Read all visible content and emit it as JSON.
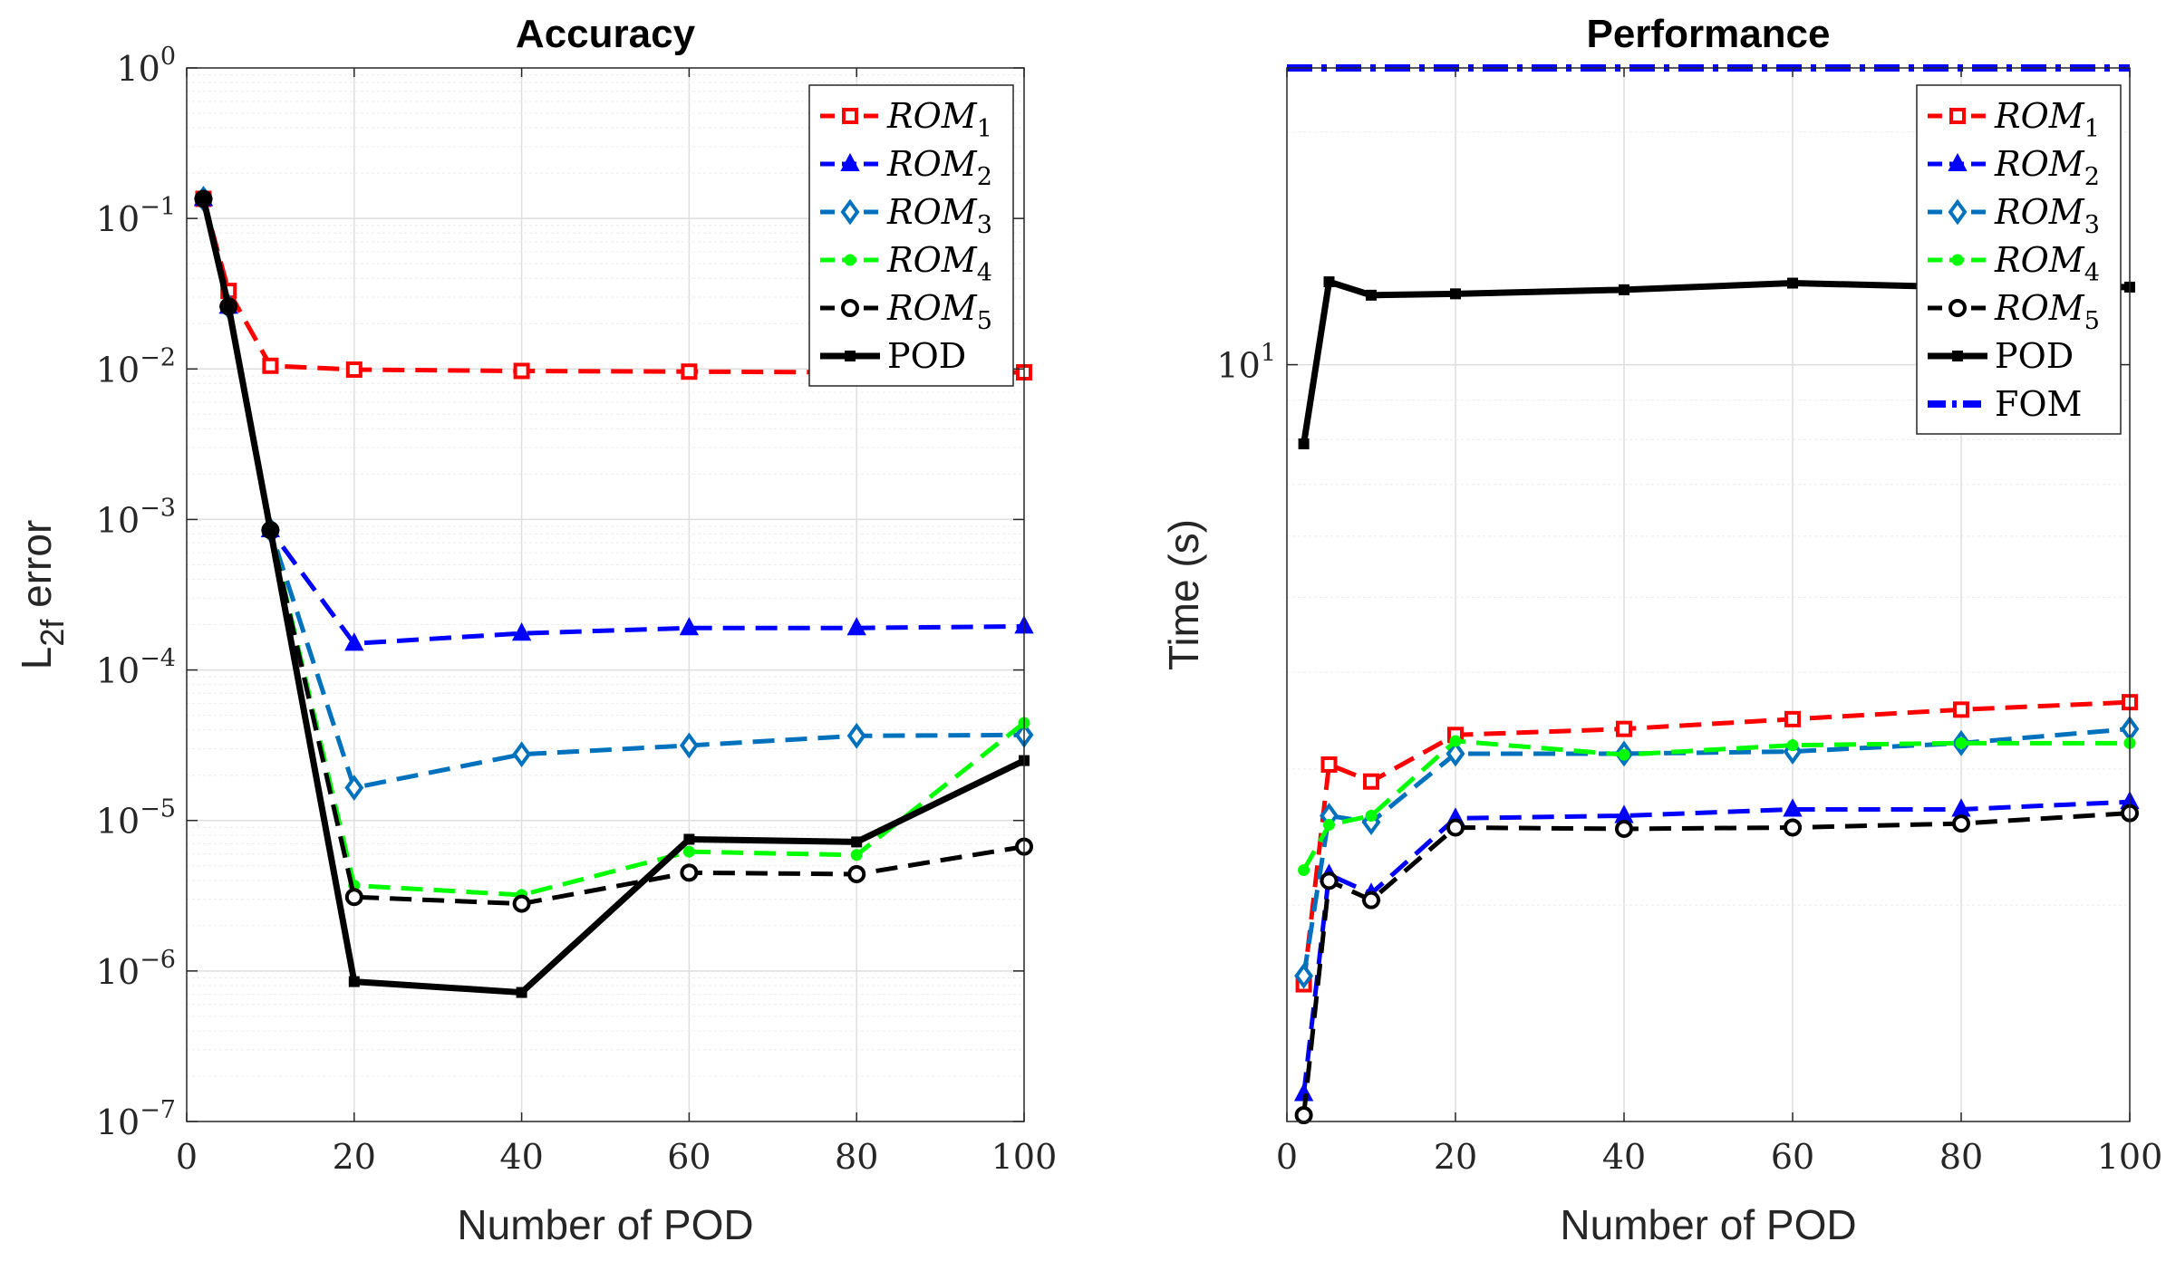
{
  "chart_data": [
    {
      "id": "accuracy",
      "type": "line",
      "title": "Accuracy",
      "xlabel": "Number of POD",
      "ylabel_main": "L",
      "ylabel_sub": "2f",
      "ylabel_rest": " error",
      "yscale": "log",
      "xlim": [
        0,
        100
      ],
      "ylim": [
        1e-07,
        1
      ],
      "grid": true,
      "legend_position": "top-right",
      "xticks": [
        0,
        20,
        40,
        60,
        80,
        100
      ],
      "yticks": [
        {
          "value": 1e-07,
          "base": "10",
          "exp": "−7"
        },
        {
          "value": 1e-06,
          "base": "10",
          "exp": "−6"
        },
        {
          "value": 1e-05,
          "base": "10",
          "exp": "−5"
        },
        {
          "value": 0.0001,
          "base": "10",
          "exp": "−4"
        },
        {
          "value": 0.001,
          "base": "10",
          "exp": "−3"
        },
        {
          "value": 0.01,
          "base": "10",
          "exp": "−2"
        },
        {
          "value": 0.1,
          "base": "10",
          "exp": "−1"
        },
        {
          "value": 1,
          "base": "10",
          "exp": "0"
        }
      ],
      "x": [
        2,
        5,
        10,
        20,
        40,
        60,
        80,
        100
      ],
      "series": [
        {
          "name": "ROM",
          "sub": "1",
          "color": "#ff0000",
          "dash": "dash",
          "marker": "square",
          "values": [
            0.135,
            0.033,
            0.0105,
            0.0099,
            0.0097,
            0.0096,
            0.0095,
            0.0095
          ]
        },
        {
          "name": "ROM",
          "sub": "2",
          "color": "#0000ff",
          "dash": "dash",
          "marker": "triangle",
          "values": [
            0.135,
            0.026,
            0.00085,
            0.00015,
            0.000175,
            0.00019,
            0.00019,
            0.000195
          ]
        },
        {
          "name": "ROM",
          "sub": "3",
          "color": "#0072bd",
          "dash": "dash",
          "marker": "diamond",
          "values": [
            0.135,
            0.026,
            0.00085,
            1.65e-05,
            2.75e-05,
            3.15e-05,
            3.65e-05,
            3.7e-05
          ]
        },
        {
          "name": "ROM",
          "sub": "4",
          "color": "#00ff00",
          "dash": "dash",
          "marker": "dot",
          "values": [
            0.135,
            0.026,
            0.00085,
            3.7e-06,
            3.2e-06,
            6.2e-06,
            5.9e-06,
            4.45e-05
          ]
        },
        {
          "name": "ROM",
          "sub": "5",
          "color": "#000000",
          "dash": "dash",
          "marker": "circle",
          "values": [
            0.135,
            0.026,
            0.00085,
            3.1e-06,
            2.8e-06,
            4.5e-06,
            4.4e-06,
            6.7e-06
          ]
        },
        {
          "name": "POD",
          "sub": "",
          "color": "#000000",
          "dash": "solid",
          "marker": "smallsquare",
          "values": [
            0.135,
            0.026,
            0.00085,
            8.5e-07,
            7.2e-07,
            7.5e-06,
            7.2e-06,
            2.5e-05
          ]
        }
      ]
    },
    {
      "id": "performance",
      "type": "line",
      "title": "Performance",
      "xlabel": "Number of POD",
      "ylabel_main": "Time (s)",
      "ylabel_sub": "",
      "ylabel_rest": "",
      "yscale": "log",
      "xlim": [
        0,
        100
      ],
      "ylim": [
        1.05,
        24.2
      ],
      "grid": true,
      "legend_position": "top-right",
      "xticks": [
        0,
        20,
        40,
        60,
        80,
        100
      ],
      "yticks": [
        {
          "value": 10,
          "base": "10",
          "exp": "1"
        }
      ],
      "minor_y": [
        2,
        3,
        4,
        5,
        6,
        7,
        8,
        9,
        20
      ],
      "x": [
        2,
        5,
        10,
        20,
        40,
        60,
        80,
        100
      ],
      "series": [
        {
          "name": "ROM",
          "sub": "1",
          "color": "#ff0000",
          "dash": "dash",
          "marker": "square",
          "values": [
            1.58,
            3.04,
            2.89,
            3.32,
            3.38,
            3.48,
            3.58,
            3.66
          ]
        },
        {
          "name": "ROM",
          "sub": "2",
          "color": "#0000ff",
          "dash": "dash",
          "marker": "triangle",
          "values": [
            1.14,
            2.19,
            2.07,
            2.59,
            2.61,
            2.66,
            2.66,
            2.72
          ]
        },
        {
          "name": "ROM",
          "sub": "3",
          "color": "#0072bd",
          "dash": "dash",
          "marker": "diamond",
          "values": [
            1.62,
            2.61,
            2.56,
            3.14,
            3.14,
            3.16,
            3.24,
            3.38
          ]
        },
        {
          "name": "ROM",
          "sub": "4",
          "color": "#00ff00",
          "dash": "dash",
          "marker": "dot",
          "values": [
            2.22,
            2.54,
            2.61,
            3.26,
            3.13,
            3.22,
            3.24,
            3.24
          ]
        },
        {
          "name": "ROM",
          "sub": "5",
          "color": "#000000",
          "dash": "dash",
          "marker": "circle",
          "values": [
            1.07,
            2.15,
            2.03,
            2.52,
            2.51,
            2.52,
            2.55,
            2.63
          ]
        },
        {
          "name": "POD",
          "sub": "",
          "color": "#000000",
          "dash": "solid",
          "marker": "smallsquare",
          "values": [
            7.9,
            12.8,
            12.3,
            12.35,
            12.5,
            12.75,
            12.6,
            12.6
          ]
        },
        {
          "name": "FOM",
          "sub": "",
          "color": "#0000ff",
          "dash": "dashdot",
          "marker": "none",
          "values": [
            24.2,
            24.2,
            24.2,
            24.2,
            24.2,
            24.2,
            24.2,
            24.2
          ],
          "xline": [
            0,
            100
          ]
        }
      ]
    }
  ]
}
